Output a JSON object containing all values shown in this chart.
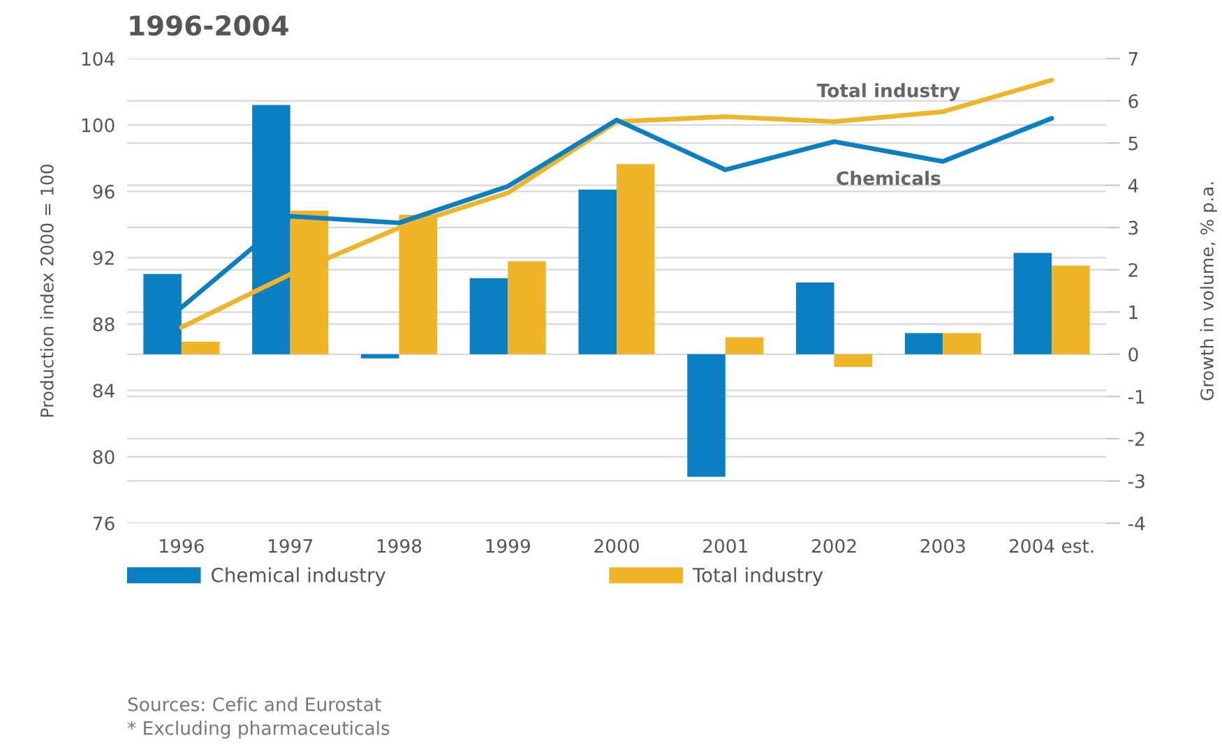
{
  "chart_data": {
    "type": "bar",
    "title": "1996-2004",
    "categories": [
      "1996",
      "1997",
      "1998",
      "1999",
      "2000",
      "2001",
      "2002",
      "2003",
      "2004 est."
    ],
    "series": [
      {
        "name": "Chemical industry",
        "color": "#0a7fc2",
        "axis": "y2",
        "values": [
          1.9,
          5.9,
          -0.1,
          1.8,
          3.9,
          -2.9,
          1.7,
          0.5,
          2.4
        ]
      },
      {
        "name": "Total industry",
        "color": "#f0b429",
        "axis": "y2",
        "values": [
          0.3,
          3.4,
          3.3,
          2.2,
          4.5,
          0.4,
          -0.3,
          0.5,
          2.1
        ]
      },
      {
        "name": "Total industry",
        "type": "line",
        "color": "#f0b429",
        "values": [
          87.8,
          91.0,
          93.8,
          95.9,
          100.2,
          100.5,
          100.2,
          100.8,
          102.7
        ]
      },
      {
        "name": "Chemicals",
        "type": "line",
        "color": "#0a7fc2",
        "values": [
          89.0,
          94.5,
          94.1,
          96.3,
          100.3,
          97.3,
          99.0,
          97.8,
          100.4
        ]
      }
    ],
    "ylabel": "Production index 2000 = 100",
    "y2label": "Growth in volume, % p.a.",
    "ylim": [
      76,
      104
    ],
    "yticks": [
      76,
      80,
      84,
      88,
      92,
      96,
      100,
      104
    ],
    "y2lim": [
      -4,
      7
    ],
    "y2ticks": [
      -4,
      -3,
      -2,
      -1,
      0,
      1,
      2,
      3,
      4,
      5,
      6,
      7
    ],
    "grid": "y",
    "legend": "bottom",
    "annotations": [
      "Sources: Cefic and Eurostat",
      "* Excluding pharmaceuticals"
    ]
  }
}
